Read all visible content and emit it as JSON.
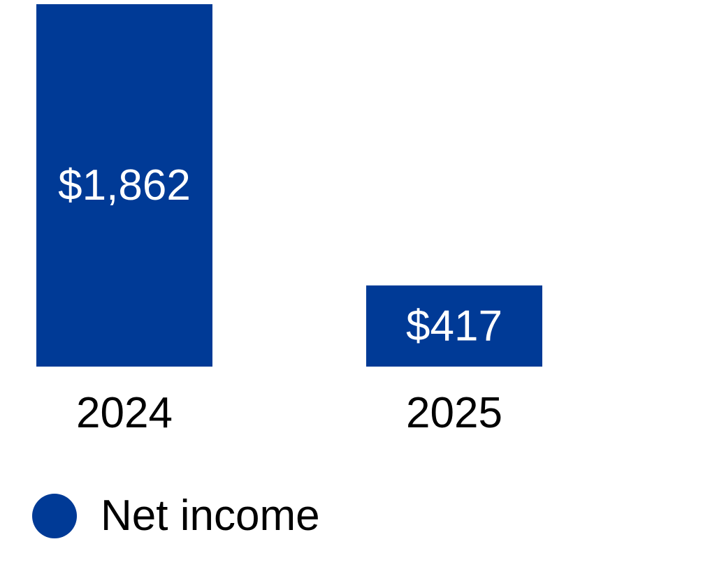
{
  "colors": {
    "series": "#003a96",
    "background": "#ffffff"
  },
  "chart_data": {
    "type": "bar",
    "categories": [
      "2024",
      "2025"
    ],
    "series": [
      {
        "name": "Net income",
        "values": [
          1862,
          417
        ],
        "labels": [
          "$1,862",
          "$417"
        ]
      }
    ],
    "ylim": [
      0,
      1862
    ],
    "grid": false,
    "legend": "bottom-left"
  },
  "legend": {
    "items": [
      {
        "label": "Net income",
        "color": "#003a96"
      }
    ]
  }
}
